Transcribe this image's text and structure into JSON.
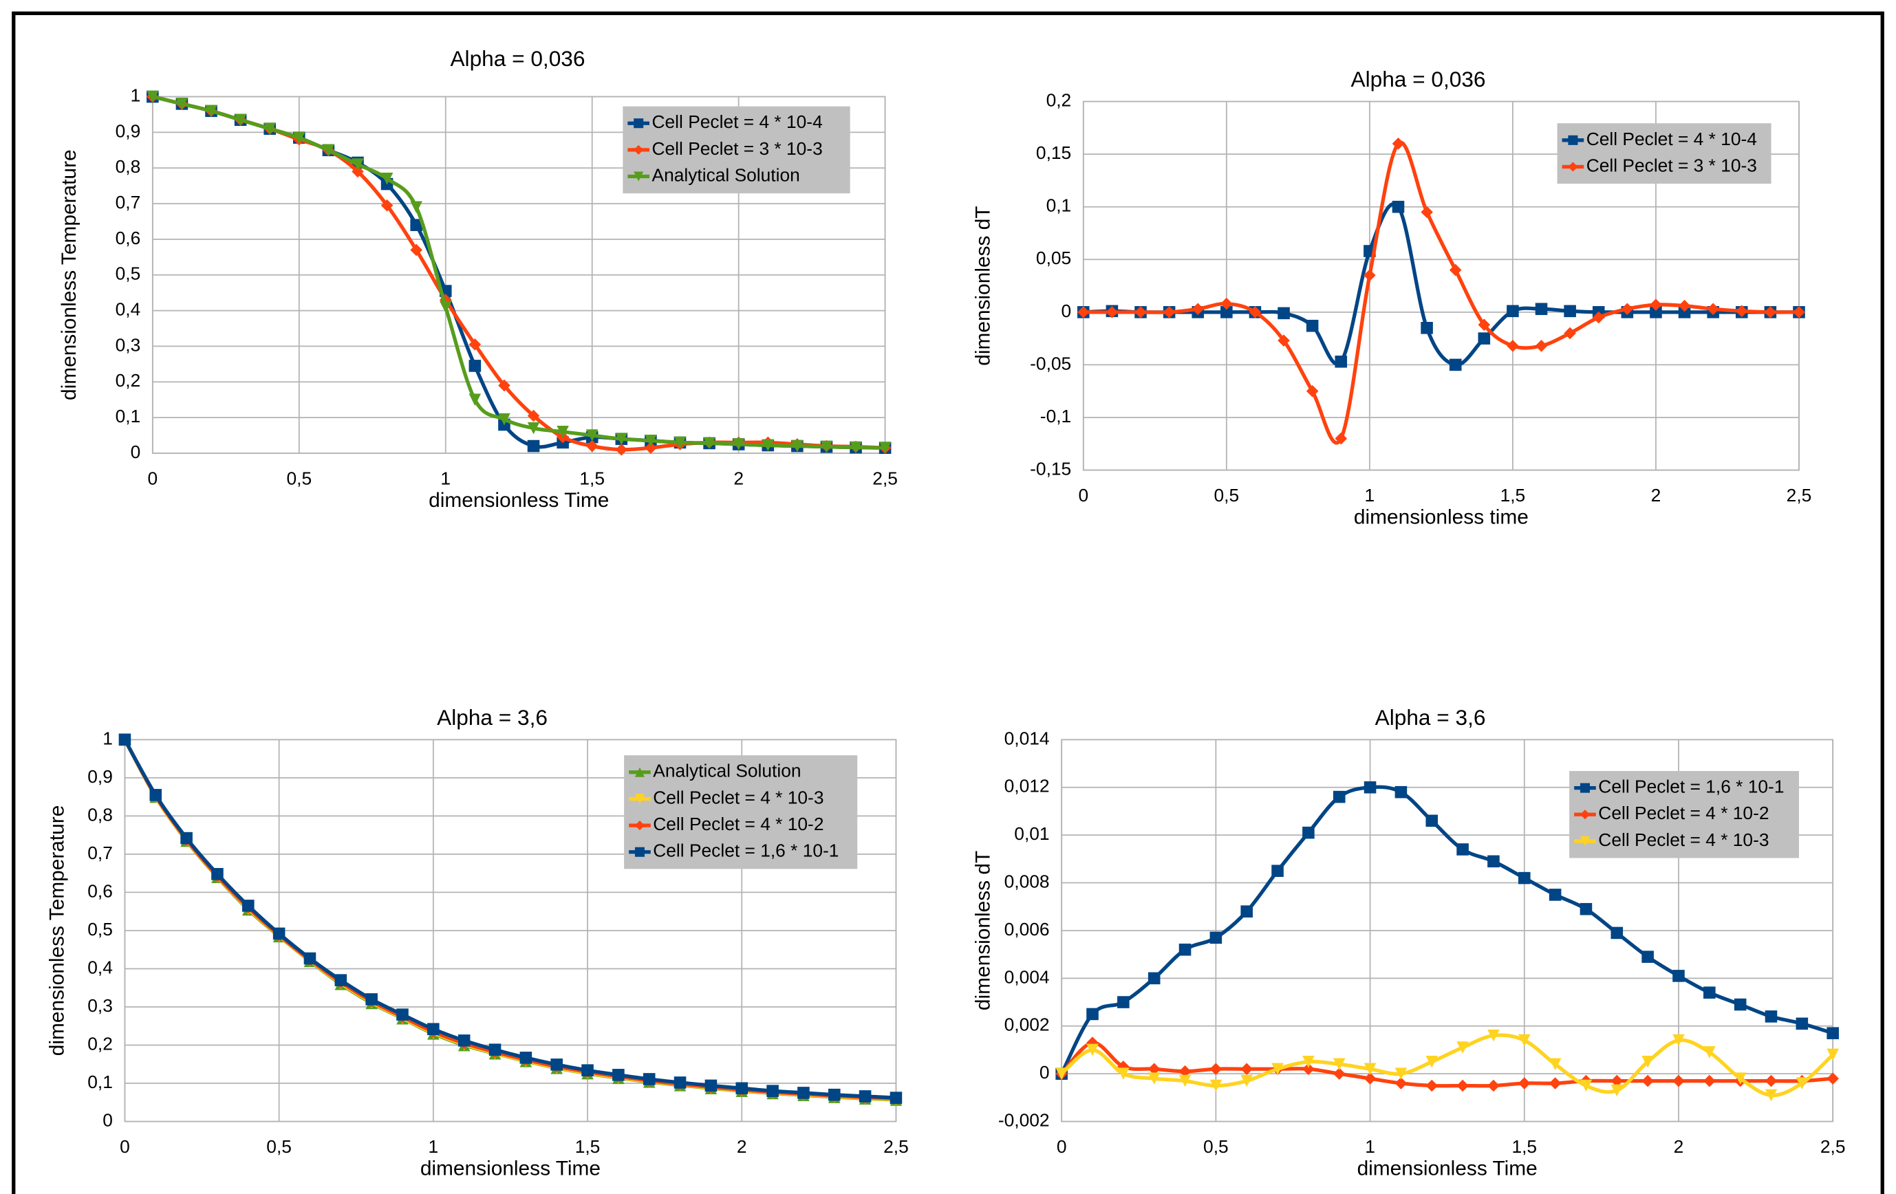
{
  "chart_data": [
    {
      "type": "line",
      "title": "Alpha = 0,036",
      "x_label": "dimensionless Time",
      "y_label": "dimensionless Temperature",
      "x": [
        0,
        0.1,
        0.2,
        0.3,
        0.4,
        0.5,
        0.6,
        0.7,
        0.8,
        0.9,
        1,
        1.1,
        1.2,
        1.3,
        1.4,
        1.5,
        1.6,
        1.7,
        1.8,
        1.9,
        2,
        2.1,
        2.2,
        2.3,
        2.4,
        2.5
      ],
      "xlim": [
        0,
        2.5
      ],
      "ylim": [
        0,
        1
      ],
      "grid": true,
      "xticks": [
        0,
        {
          "value": 0.5,
          "label": "0,5"
        },
        1,
        {
          "value": 1.5,
          "label": "1,5"
        },
        2,
        {
          "value": 2.5,
          "label": "2,5"
        }
      ],
      "yticks": [
        0,
        {
          "value": 0.1,
          "label": "0,1"
        },
        {
          "value": 0.2,
          "label": "0,2"
        },
        {
          "value": 0.3,
          "label": "0,3"
        },
        {
          "value": 0.4,
          "label": "0,4"
        },
        {
          "value": 0.5,
          "label": "0,5"
        },
        {
          "value": 0.6,
          "label": "0,6"
        },
        {
          "value": 0.7,
          "label": "0,7"
        },
        {
          "value": 0.8,
          "label": "0,8"
        },
        {
          "value": 0.9,
          "label": "0,9"
        },
        1
      ],
      "series": [
        {
          "name": "Cell Peclet = 4 * 10-4",
          "color": "#004586",
          "marker": "square",
          "values": [
            1,
            0.98,
            0.96,
            0.935,
            0.91,
            0.885,
            0.85,
            0.815,
            0.755,
            0.64,
            0.455,
            0.245,
            0.08,
            0.02,
            0.03,
            0.045,
            0.04,
            0.035,
            0.03,
            0.028,
            0.025,
            0.022,
            0.02,
            0.018,
            0.016,
            0.015
          ]
        },
        {
          "name": "Cell Peclet = 3 * 10-3",
          "color": "#ff420e",
          "marker": "diamond",
          "values": [
            1,
            0.98,
            0.96,
            0.935,
            0.91,
            0.88,
            0.85,
            0.79,
            0.695,
            0.57,
            0.43,
            0.305,
            0.19,
            0.105,
            0.045,
            0.02,
            0.01,
            0.015,
            0.025,
            0.03,
            0.03,
            0.03,
            0.025,
            0.02,
            0.018,
            0.015
          ]
        },
        {
          "name": "Analytical Solution",
          "color": "#579d1c",
          "marker": "triangle-down",
          "values": [
            1,
            0.98,
            0.96,
            0.935,
            0.91,
            0.885,
            0.85,
            0.81,
            0.77,
            0.69,
            0.41,
            0.15,
            0.095,
            0.07,
            0.06,
            0.05,
            0.04,
            0.035,
            0.03,
            0.028,
            0.025,
            0.022,
            0.02,
            0.018,
            0.016,
            0.015
          ]
        }
      ]
    },
    {
      "type": "line",
      "title": "Alpha = 0,036",
      "x_label": "dimensionless time",
      "y_label": "dimensionless dT",
      "x": [
        0,
        0.1,
        0.2,
        0.3,
        0.4,
        0.5,
        0.6,
        0.7,
        0.8,
        0.9,
        1,
        1.1,
        1.2,
        1.3,
        1.4,
        1.5,
        1.6,
        1.7,
        1.8,
        1.9,
        2,
        2.1,
        2.2,
        2.3,
        2.4,
        2.5
      ],
      "xlim": [
        0,
        2.5
      ],
      "ylim": [
        -0.15,
        0.2
      ],
      "grid": true,
      "xticks": [
        0,
        {
          "value": 0.5,
          "label": "0,5"
        },
        1,
        {
          "value": 1.5,
          "label": "1,5"
        },
        2,
        {
          "value": 2.5,
          "label": "2,5"
        }
      ],
      "yticks": [
        {
          "value": -0.15,
          "label": "-0,15"
        },
        {
          "value": -0.1,
          "label": "-0,1"
        },
        {
          "value": -0.05,
          "label": "-0,05"
        },
        0,
        {
          "value": 0.05,
          "label": "0,05"
        },
        {
          "value": 0.1,
          "label": "0,1"
        },
        {
          "value": 0.15,
          "label": "0,15"
        },
        {
          "value": 0.2,
          "label": "0,2"
        }
      ],
      "series": [
        {
          "name": "Cell Peclet = 4 * 10-4",
          "color": "#004586",
          "marker": "square",
          "values": [
            0,
            0.001,
            0,
            0,
            0,
            0,
            0,
            -0.001,
            -0.013,
            -0.047,
            0.058,
            0.1,
            -0.015,
            -0.05,
            -0.025,
            0.001,
            0.003,
            0.001,
            0,
            0,
            0,
            0,
            0,
            0,
            0,
            0
          ]
        },
        {
          "name": "Cell Peclet = 3 * 10-3",
          "color": "#ff420e",
          "marker": "diamond",
          "values": [
            0,
            0,
            0,
            0,
            0.003,
            0.008,
            0,
            -0.027,
            -0.075,
            -0.12,
            0.035,
            0.16,
            0.095,
            0.04,
            -0.012,
            -0.032,
            -0.032,
            -0.02,
            -0.005,
            0.003,
            0.007,
            0.006,
            0.003,
            0.001,
            0,
            0
          ]
        }
      ]
    },
    {
      "type": "line",
      "title": "Alpha = 3,6",
      "x_label": "dimensionless Time",
      "y_label": "dimensionless Temperature",
      "x": [
        0,
        0.1,
        0.2,
        0.3,
        0.4,
        0.5,
        0.6,
        0.7,
        0.8,
        0.9,
        1,
        1.1,
        1.2,
        1.3,
        1.4,
        1.5,
        1.6,
        1.7,
        1.8,
        1.9,
        2,
        2.1,
        2.2,
        2.3,
        2.4,
        2.5
      ],
      "xlim": [
        0,
        2.5
      ],
      "ylim": [
        0,
        1
      ],
      "grid": true,
      "xticks": [
        0,
        {
          "value": 0.5,
          "label": "0,5"
        },
        1,
        {
          "value": 1.5,
          "label": "1,5"
        },
        2,
        {
          "value": 2.5,
          "label": "2,5"
        }
      ],
      "yticks": [
        0,
        {
          "value": 0.1,
          "label": "0,1"
        },
        {
          "value": 0.2,
          "label": "0,2"
        },
        {
          "value": 0.3,
          "label": "0,3"
        },
        {
          "value": 0.4,
          "label": "0,4"
        },
        {
          "value": 0.5,
          "label": "0,5"
        },
        {
          "value": 0.6,
          "label": "0,6"
        },
        {
          "value": 0.7,
          "label": "0,7"
        },
        {
          "value": 0.8,
          "label": "0,8"
        },
        {
          "value": 0.9,
          "label": "0,9"
        },
        1
      ],
      "series": [
        {
          "name": "Analytical Solution",
          "color": "#579d1c",
          "marker": "triangle-up",
          "values": [
            1,
            0.85,
            0.735,
            0.64,
            0.555,
            0.485,
            0.42,
            0.36,
            0.31,
            0.27,
            0.23,
            0.2,
            0.178,
            0.158,
            0.14,
            0.126,
            0.114,
            0.104,
            0.095,
            0.087,
            0.08,
            0.074,
            0.069,
            0.064,
            0.06,
            0.057
          ]
        },
        {
          "name": "Cell Peclet = 4 * 10-3",
          "color": "#ffd320",
          "marker": "triangle-down",
          "values": [
            1,
            0.85,
            0.736,
            0.641,
            0.557,
            0.486,
            0.421,
            0.362,
            0.312,
            0.271,
            0.232,
            0.202,
            0.179,
            0.159,
            0.141,
            0.127,
            0.115,
            0.105,
            0.096,
            0.088,
            0.081,
            0.075,
            0.07,
            0.065,
            0.061,
            0.058
          ]
        },
        {
          "name": "Cell Peclet = 4 * 10-2",
          "color": "#ff420e",
          "marker": "diamond",
          "values": [
            1,
            0.852,
            0.738,
            0.643,
            0.56,
            0.488,
            0.423,
            0.365,
            0.315,
            0.274,
            0.235,
            0.205,
            0.182,
            0.162,
            0.144,
            0.13,
            0.118,
            0.107,
            0.098,
            0.09,
            0.083,
            0.077,
            0.072,
            0.067,
            0.063,
            0.06
          ]
        },
        {
          "name": "Cell Peclet = 1,6 * 10-1",
          "color": "#004586",
          "marker": "square",
          "values": [
            1,
            0.855,
            0.742,
            0.648,
            0.565,
            0.492,
            0.427,
            0.37,
            0.32,
            0.28,
            0.242,
            0.212,
            0.188,
            0.167,
            0.149,
            0.134,
            0.122,
            0.111,
            0.102,
            0.094,
            0.087,
            0.08,
            0.075,
            0.07,
            0.066,
            0.062
          ]
        }
      ]
    },
    {
      "type": "line",
      "title": "Alpha = 3,6",
      "x_label": "dimensionless Time",
      "y_label": "dimensionless dT",
      "x": [
        0,
        0.1,
        0.2,
        0.3,
        0.4,
        0.5,
        0.6,
        0.7,
        0.8,
        0.9,
        1,
        1.1,
        1.2,
        1.3,
        1.4,
        1.5,
        1.6,
        1.7,
        1.8,
        1.9,
        2,
        2.1,
        2.2,
        2.3,
        2.4,
        2.5
      ],
      "xlim": [
        0,
        2.5
      ],
      "ylim": [
        -0.002,
        0.014
      ],
      "grid": true,
      "xticks": [
        0,
        {
          "value": 0.5,
          "label": "0,5"
        },
        1,
        {
          "value": 1.5,
          "label": "1,5"
        },
        2,
        {
          "value": 2.5,
          "label": "2,5"
        }
      ],
      "yticks": [
        {
          "value": -0.002,
          "label": "-0,002"
        },
        0,
        {
          "value": 0.002,
          "label": "0,002"
        },
        {
          "value": 0.004,
          "label": "0,004"
        },
        {
          "value": 0.006,
          "label": "0,006"
        },
        {
          "value": 0.008,
          "label": "0,008"
        },
        {
          "value": 0.01,
          "label": "0,01"
        },
        {
          "value": 0.012,
          "label": "0,012"
        },
        {
          "value": 0.014,
          "label": "0,014"
        }
      ],
      "series": [
        {
          "name": "Cell Peclet = 1,6 * 10-1",
          "color": "#004586",
          "marker": "square",
          "values": [
            0,
            0.0025,
            0.003,
            0.004,
            0.0052,
            0.0057,
            0.0068,
            0.0085,
            0.0101,
            0.0116,
            0.012,
            0.0118,
            0.0106,
            0.0094,
            0.0089,
            0.0082,
            0.0075,
            0.0069,
            0.0059,
            0.0049,
            0.0041,
            0.0034,
            0.0029,
            0.0024,
            0.0021,
            0.0017
          ]
        },
        {
          "name": "Cell Peclet = 4 * 10-2",
          "color": "#ff420e",
          "marker": "diamond",
          "values": [
            0,
            0.0013,
            0.0003,
            0.0002,
            0.0001,
            0.0002,
            0.0002,
            0.0002,
            0.0002,
            0,
            -0.0002,
            -0.0004,
            -0.0005,
            -0.0005,
            -0.0005,
            -0.0004,
            -0.0004,
            -0.0003,
            -0.0003,
            -0.0003,
            -0.0003,
            -0.0003,
            -0.0003,
            -0.0003,
            -0.0003,
            -0.0002
          ]
        },
        {
          "name": "Cell Peclet = 4 * 10-3",
          "color": "#ffd320",
          "marker": "triangle-down",
          "values": [
            0,
            0.001,
            0,
            -0.0002,
            -0.0003,
            -0.0005,
            -0.0003,
            0.0002,
            0.0005,
            0.0004,
            0.0002,
            0,
            0.0005,
            0.0011,
            0.0016,
            0.0014,
            0.0004,
            -0.0005,
            -0.0007,
            0.0005,
            0.0014,
            0.0009,
            -0.0002,
            -0.0009,
            -0.0004,
            0.0008
          ]
        }
      ]
    }
  ]
}
